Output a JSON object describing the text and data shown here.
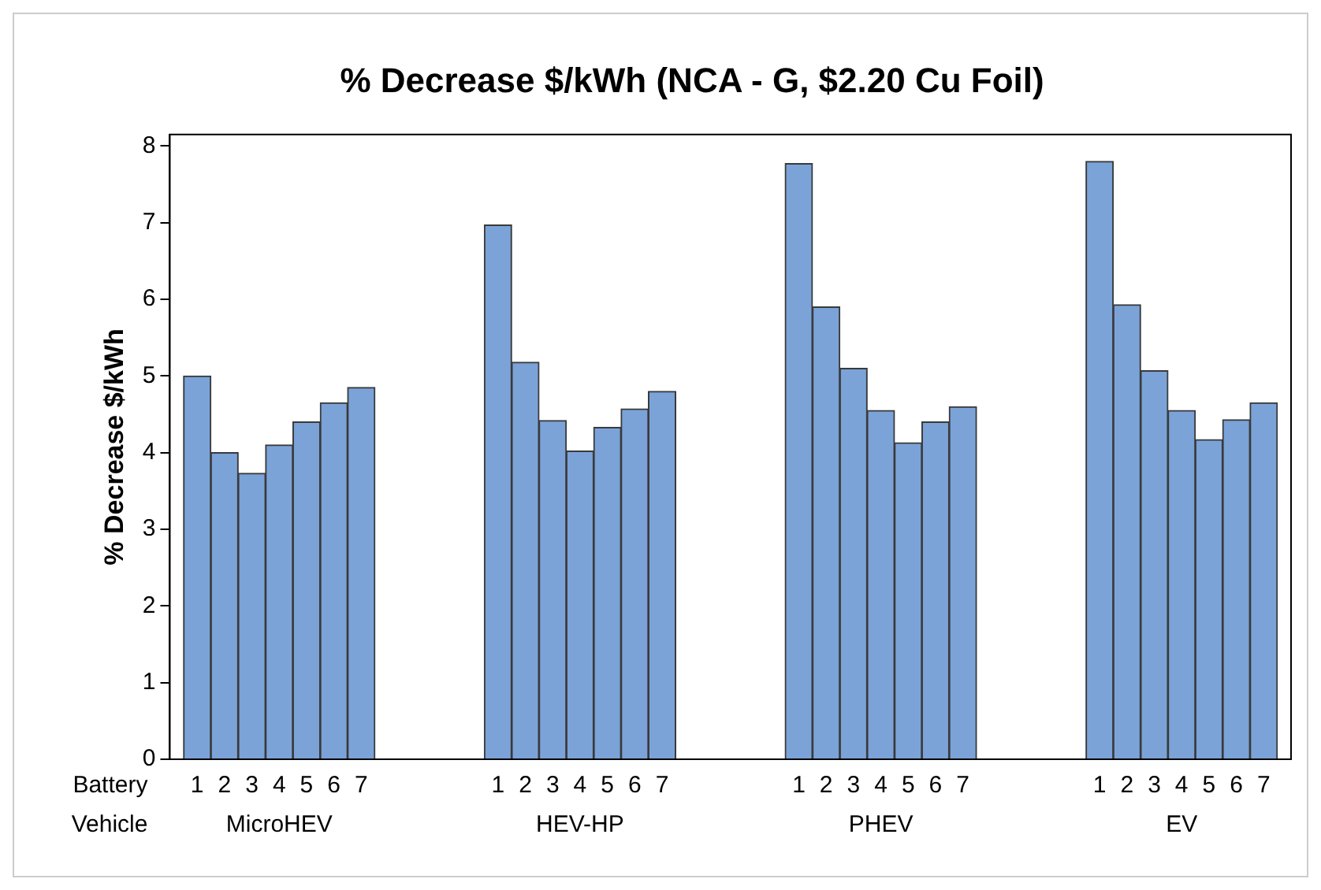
{
  "chart_data": {
    "type": "bar",
    "title": "% Decrease $/kWh (NCA - G, $2.20 Cu Foil)",
    "ylabel": "% Decrease $/kWh",
    "categories": [
      "1",
      "2",
      "3",
      "4",
      "5",
      "6",
      "7",
      null,
      null,
      null,
      null,
      "1",
      "2",
      "3",
      "4",
      "5",
      "6",
      "7",
      null,
      null,
      null,
      null,
      "1",
      "2",
      "3",
      "4",
      "5",
      "6",
      "7",
      null,
      null,
      null,
      null,
      "1",
      "2",
      "3",
      "4",
      "5",
      "6",
      "7"
    ],
    "values": [
      5.0,
      4.0,
      3.73,
      4.1,
      4.4,
      4.65,
      4.85,
      null,
      null,
      null,
      null,
      6.97,
      5.18,
      4.42,
      4.02,
      4.33,
      4.57,
      4.8,
      null,
      null,
      null,
      null,
      7.77,
      5.9,
      5.1,
      4.55,
      4.13,
      4.4,
      4.6,
      null,
      null,
      null,
      null,
      7.8,
      5.93,
      5.07,
      4.55,
      4.17,
      4.43,
      4.65
    ],
    "color": "#7ba3d8",
    "annotations": [
      "Battery",
      "Vehicle",
      "MicroHEV",
      "HEV-HP",
      "PHEV",
      "EV"
    ],
    "ylim": [
      0,
      8.15
    ],
    "yticks": [
      0,
      1,
      2,
      3,
      4,
      5,
      6,
      7,
      8
    ],
    "grid": false,
    "legend": false
  }
}
